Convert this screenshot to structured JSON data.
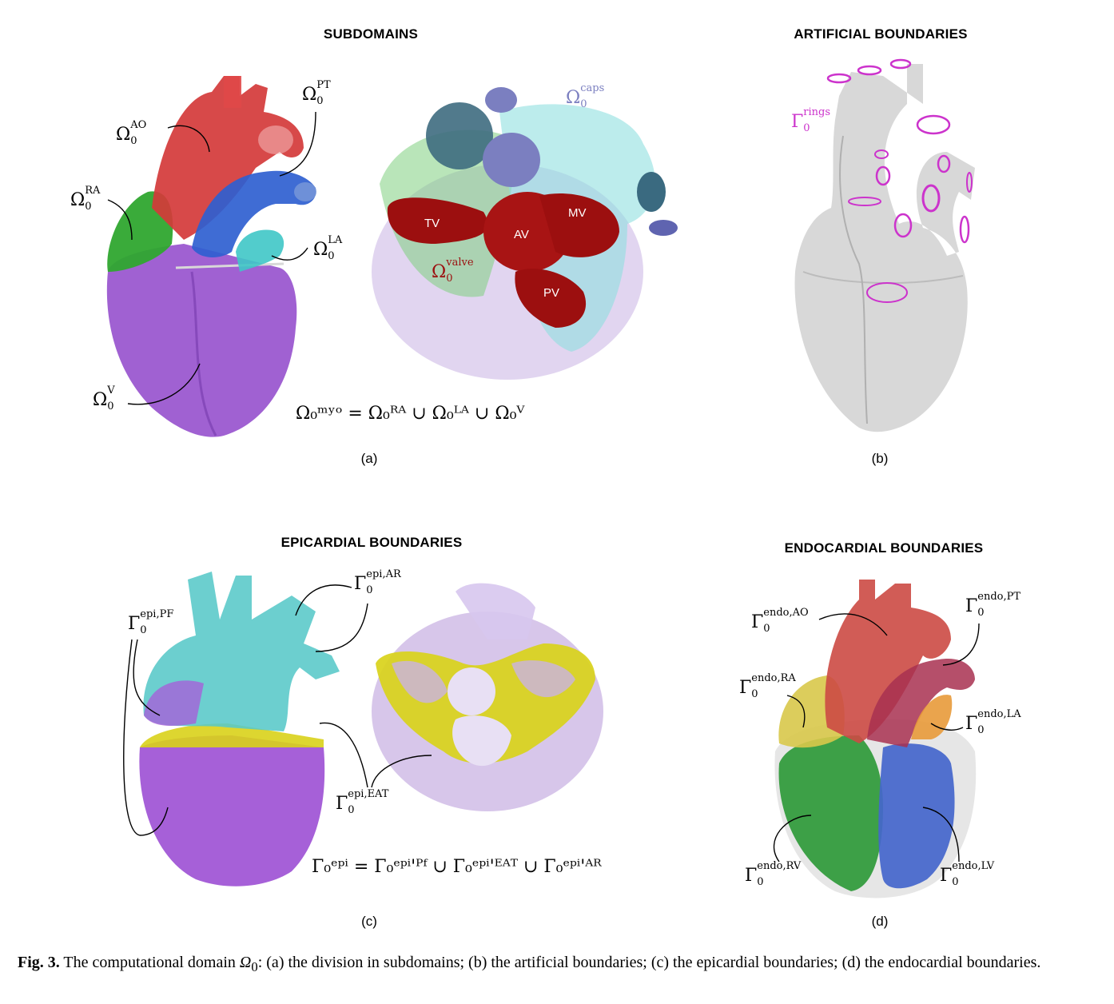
{
  "panels": {
    "a": {
      "title": "SUBDOMAINS",
      "sublabel": "(a)",
      "labels": {
        "pt": {
          "base": "Ω",
          "sup": "PT",
          "sub": "0"
        },
        "ao": {
          "base": "Ω",
          "sup": "AO",
          "sub": "0"
        },
        "ra": {
          "base": "Ω",
          "sup": "RA",
          "sub": "0"
        },
        "la": {
          "base": "Ω",
          "sup": "LA",
          "sub": "0"
        },
        "v": {
          "base": "Ω",
          "sup": "V",
          "sub": "0"
        },
        "caps": {
          "base": "Ω",
          "sup": "caps",
          "sub": "0"
        },
        "valve": {
          "base": "Ω",
          "sup": "valve",
          "sub": "0"
        }
      },
      "valves": {
        "tv": "TV",
        "av": "AV",
        "mv": "MV",
        "pv": "PV"
      },
      "formula": "Ω₀ᵐʸᵒ = Ω₀ᴿᴬ ∪ Ω₀ᴸᴬ ∪ Ω₀ⱽ"
    },
    "b": {
      "title": "ARTIFICIAL BOUNDARIES",
      "sublabel": "(b)",
      "labels": {
        "rings": {
          "base": "Γ",
          "sup": "rings",
          "sub": "0"
        }
      }
    },
    "c": {
      "title": "EPICARDIAL BOUNDARIES",
      "sublabel": "(c)",
      "labels": {
        "ar": {
          "base": "Γ",
          "sup": "epi,AR",
          "sub": "0"
        },
        "pf": {
          "base": "Γ",
          "sup": "epi,PF",
          "sub": "0"
        },
        "eat": {
          "base": "Γ",
          "sup": "epi,EAT",
          "sub": "0"
        }
      },
      "formula": "Γ₀ᵉᵖⁱ = Γ₀ᵉᵖⁱ'ᴾᶠ ∪ Γ₀ᵉᵖⁱ'ᴱᴬᵀ ∪ Γ₀ᵉᵖⁱ'ᴬᴿ"
    },
    "d": {
      "title": "ENDOCARDIAL BOUNDARIES",
      "sublabel": "(d)",
      "labels": {
        "ao": {
          "base": "Γ",
          "sup": "endo,AO",
          "sub": "0"
        },
        "pt": {
          "base": "Γ",
          "sup": "endo,PT",
          "sub": "0"
        },
        "ra": {
          "base": "Γ",
          "sup": "endo,RA",
          "sub": "0"
        },
        "la": {
          "base": "Γ",
          "sup": "endo,LA",
          "sub": "0"
        },
        "rv": {
          "base": "Γ",
          "sup": "endo,RV",
          "sub": "0"
        },
        "lv": {
          "base": "Γ",
          "sup": "endo,LV",
          "sub": "0"
        }
      }
    }
  },
  "caption": {
    "fig": "Fig. 3.",
    "text_before": " The computational domain ",
    "symbol": "Ω",
    "symbol_sub": "0",
    "text_after": ": (a) the division in subdomains; (b) the artificial boundaries; (c) the epicardial boundaries; (d) the endocardial boundaries."
  },
  "colors": {
    "ventricle": "#9b59d0",
    "aorta": "#d43a3a",
    "pulmonary": "#2f5fd0",
    "right_atrium": "#2fa72f",
    "left_atrium": "#3fc7c7",
    "valve": "#9c0f0f",
    "caps": "#7b7fc0",
    "rings": "#cc33cc",
    "eat": "#d9d21a",
    "epi_ar": "#58c8c8",
    "endo_lv": "#4466cc",
    "endo_rv": "#2f9a3a",
    "endo_la": "#e89a3a",
    "endo_ra": "#d8c84a"
  }
}
